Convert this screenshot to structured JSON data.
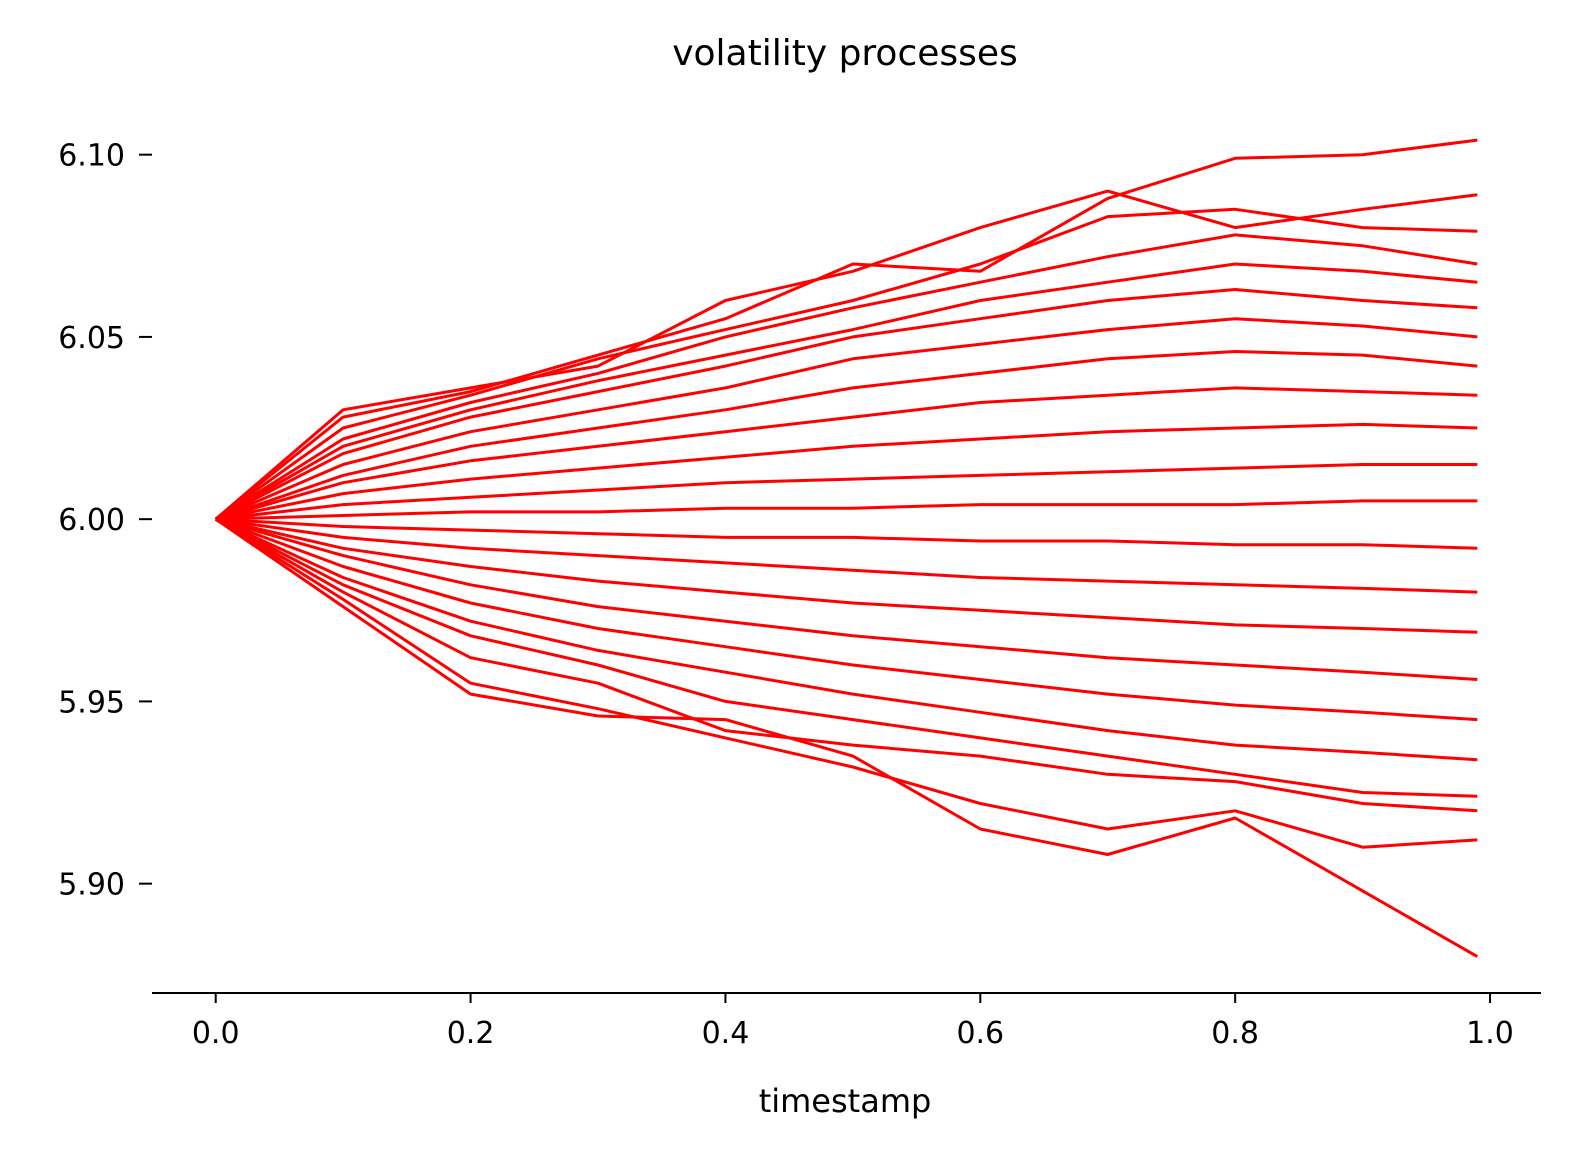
{
  "chart_data": {
    "type": "line",
    "title": "volatility processes",
    "xlabel": "timestamp",
    "ylabel": "",
    "xlim": [
      -0.05,
      1.04
    ],
    "ylim": [
      5.87,
      6.115
    ],
    "x_ticks": [
      "0.0",
      "0.2",
      "0.4",
      "0.6",
      "0.8",
      "1.0"
    ],
    "x_tick_values": [
      0.0,
      0.2,
      0.4,
      0.6,
      0.8,
      1.0
    ],
    "y_ticks": [
      "6.10",
      "6.05",
      "6.00",
      "5.95",
      "5.90"
    ],
    "y_tick_values": [
      6.1,
      6.05,
      6.0,
      5.95,
      5.9
    ],
    "line_color": "#ff0000",
    "grid": false,
    "spines": [
      "bottom"
    ],
    "x": [
      0.0,
      0.1,
      0.2,
      0.3,
      0.4,
      0.5,
      0.6,
      0.7,
      0.8,
      0.9,
      0.99
    ],
    "series": [
      {
        "values": [
          6.0,
          6.028,
          6.035,
          6.045,
          6.055,
          6.07,
          6.068,
          6.088,
          6.099,
          6.1,
          6.104
        ]
      },
      {
        "values": [
          6.0,
          6.03,
          6.036,
          6.042,
          6.06,
          6.068,
          6.08,
          6.09,
          6.08,
          6.085,
          6.089
        ]
      },
      {
        "values": [
          6.0,
          6.025,
          6.034,
          6.044,
          6.052,
          6.06,
          6.07,
          6.083,
          6.085,
          6.08,
          6.079
        ]
      },
      {
        "values": [
          6.0,
          6.022,
          6.032,
          6.04,
          6.05,
          6.058,
          6.065,
          6.072,
          6.078,
          6.075,
          6.07
        ]
      },
      {
        "values": [
          6.0,
          6.02,
          6.03,
          6.038,
          6.045,
          6.052,
          6.06,
          6.065,
          6.07,
          6.068,
          6.065
        ]
      },
      {
        "values": [
          6.0,
          6.018,
          6.028,
          6.035,
          6.042,
          6.05,
          6.055,
          6.06,
          6.063,
          6.06,
          6.058
        ]
      },
      {
        "values": [
          6.0,
          6.015,
          6.024,
          6.03,
          6.036,
          6.044,
          6.048,
          6.052,
          6.055,
          6.053,
          6.05
        ]
      },
      {
        "values": [
          6.0,
          6.012,
          6.02,
          6.025,
          6.03,
          6.036,
          6.04,
          6.044,
          6.046,
          6.045,
          6.042
        ]
      },
      {
        "values": [
          6.0,
          6.01,
          6.016,
          6.02,
          6.024,
          6.028,
          6.032,
          6.034,
          6.036,
          6.035,
          6.034
        ]
      },
      {
        "values": [
          6.0,
          6.007,
          6.011,
          6.014,
          6.017,
          6.02,
          6.022,
          6.024,
          6.025,
          6.026,
          6.025
        ]
      },
      {
        "values": [
          6.0,
          6.004,
          6.006,
          6.008,
          6.01,
          6.011,
          6.012,
          6.013,
          6.014,
          6.015,
          6.015
        ]
      },
      {
        "values": [
          6.0,
          6.001,
          6.002,
          6.002,
          6.003,
          6.003,
          6.004,
          6.004,
          6.004,
          6.005,
          6.005
        ]
      },
      {
        "values": [
          6.0,
          5.998,
          5.997,
          5.996,
          5.995,
          5.995,
          5.994,
          5.994,
          5.993,
          5.993,
          5.992
        ]
      },
      {
        "values": [
          6.0,
          5.995,
          5.992,
          5.99,
          5.988,
          5.986,
          5.984,
          5.983,
          5.982,
          5.981,
          5.98
        ]
      },
      {
        "values": [
          6.0,
          5.992,
          5.987,
          5.983,
          5.98,
          5.977,
          5.975,
          5.973,
          5.971,
          5.97,
          5.969
        ]
      },
      {
        "values": [
          6.0,
          5.99,
          5.982,
          5.976,
          5.972,
          5.968,
          5.965,
          5.962,
          5.96,
          5.958,
          5.956
        ]
      },
      {
        "values": [
          6.0,
          5.987,
          5.977,
          5.97,
          5.965,
          5.96,
          5.956,
          5.952,
          5.949,
          5.947,
          5.945
        ]
      },
      {
        "values": [
          6.0,
          5.984,
          5.972,
          5.964,
          5.958,
          5.952,
          5.947,
          5.942,
          5.938,
          5.936,
          5.934
        ]
      },
      {
        "values": [
          6.0,
          5.982,
          5.968,
          5.96,
          5.95,
          5.945,
          5.94,
          5.935,
          5.93,
          5.925,
          5.924
        ]
      },
      {
        "values": [
          6.0,
          5.98,
          5.962,
          5.955,
          5.942,
          5.938,
          5.935,
          5.93,
          5.928,
          5.922,
          5.92
        ]
      },
      {
        "values": [
          6.0,
          5.978,
          5.955,
          5.948,
          5.94,
          5.932,
          5.922,
          5.915,
          5.92,
          5.91,
          5.912
        ]
      },
      {
        "values": [
          6.0,
          5.976,
          5.952,
          5.946,
          5.945,
          5.935,
          5.915,
          5.908,
          5.918,
          5.898,
          5.88
        ]
      }
    ]
  }
}
